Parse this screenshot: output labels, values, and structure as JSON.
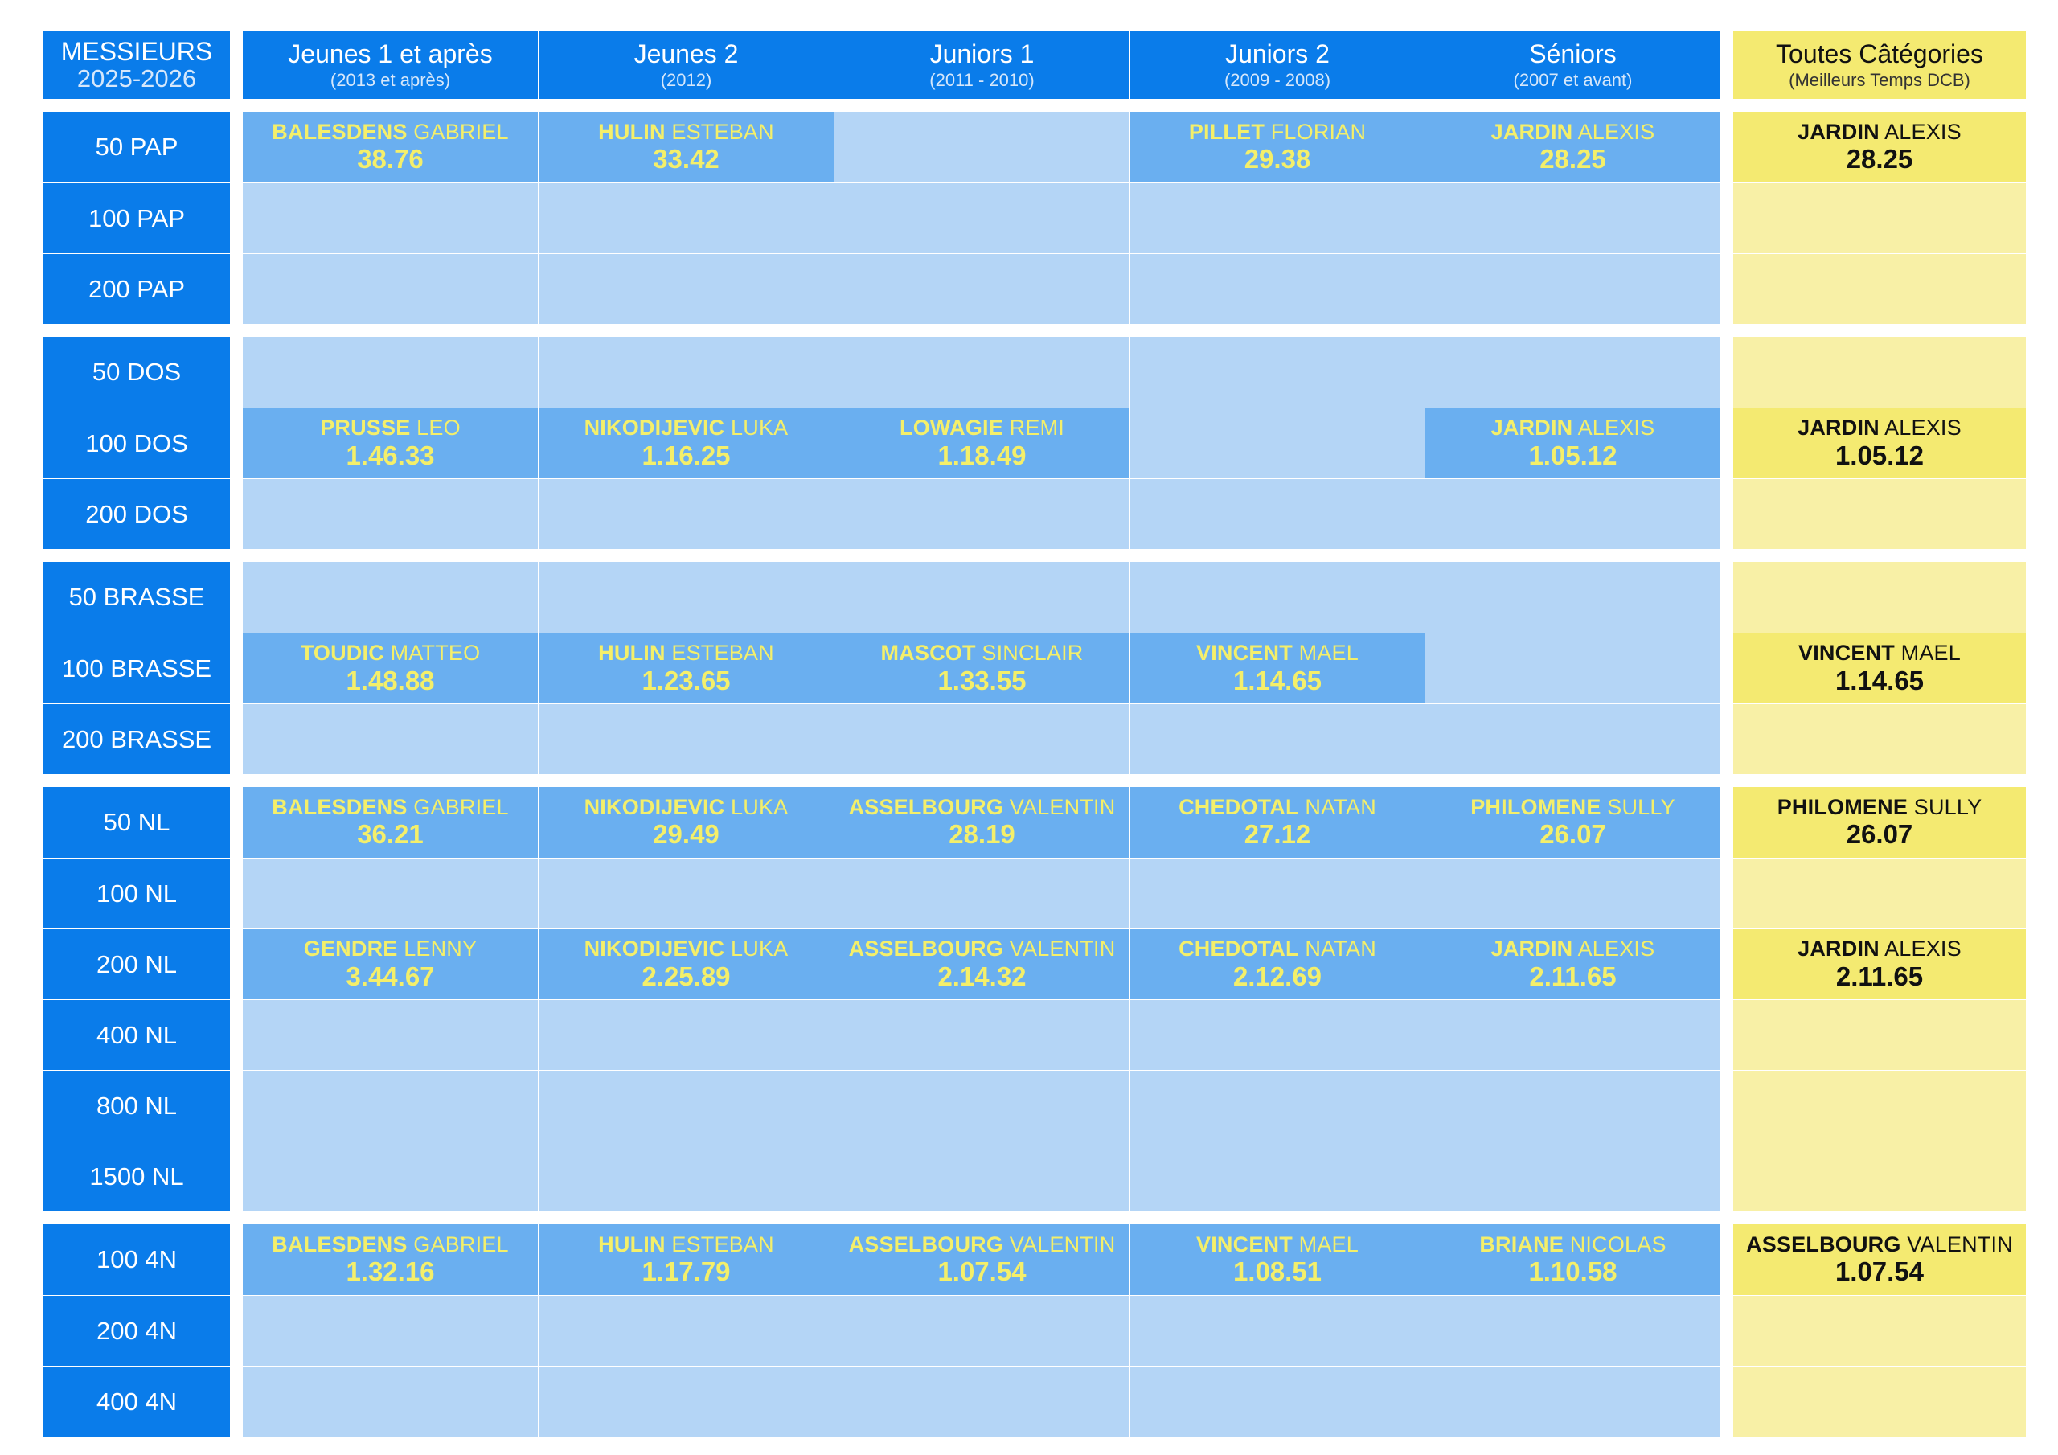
{
  "corner": {
    "title": "MESSIEURS",
    "season": "2025-2026"
  },
  "columns": [
    {
      "title": "Jeunes 1 et après",
      "subtitle": "(2013 et après)"
    },
    {
      "title": "Jeunes 2",
      "subtitle": "(2012)"
    },
    {
      "title": "Juniors 1",
      "subtitle": "(2011 - 2010)"
    },
    {
      "title": "Juniors 2",
      "subtitle": "(2009 - 2008)"
    },
    {
      "title": "Séniors",
      "subtitle": "(2007 et avant)"
    }
  ],
  "overall": {
    "title": "Toutes Câtégories",
    "subtitle": "(Meilleurs Temps DCB)"
  },
  "groups": [
    {
      "rows": [
        {
          "event": "50 PAP",
          "cells": [
            {
              "last": "BALESDENS",
              "first": "GABRIEL",
              "time": "38.76"
            },
            {
              "last": "HULIN",
              "first": "ESTEBAN",
              "time": "33.42"
            },
            null,
            {
              "last": "PILLET",
              "first": "FLORIAN",
              "time": "29.38"
            },
            {
              "last": "JARDIN",
              "first": "ALEXIS",
              "time": "28.25"
            }
          ],
          "best": {
            "last": "JARDIN",
            "first": "ALEXIS",
            "time": "28.25"
          }
        },
        {
          "event": "100 PAP",
          "cells": [
            null,
            null,
            null,
            null,
            null
          ],
          "best": null
        },
        {
          "event": "200 PAP",
          "cells": [
            null,
            null,
            null,
            null,
            null
          ],
          "best": null
        }
      ]
    },
    {
      "rows": [
        {
          "event": "50 DOS",
          "cells": [
            null,
            null,
            null,
            null,
            null
          ],
          "best": null
        },
        {
          "event": "100 DOS",
          "cells": [
            {
              "last": "PRUSSE",
              "first": "LEO",
              "time": "1.46.33"
            },
            {
              "last": "NIKODIJEVIC",
              "first": "LUKA",
              "time": "1.16.25"
            },
            {
              "last": "LOWAGIE",
              "first": "REMI",
              "time": "1.18.49"
            },
            null,
            {
              "last": "JARDIN",
              "first": "ALEXIS",
              "time": "1.05.12"
            }
          ],
          "best": {
            "last": "JARDIN",
            "first": "ALEXIS",
            "time": "1.05.12"
          }
        },
        {
          "event": "200 DOS",
          "cells": [
            null,
            null,
            null,
            null,
            null
          ],
          "best": null
        }
      ]
    },
    {
      "rows": [
        {
          "event": "50 BRASSE",
          "cells": [
            null,
            null,
            null,
            null,
            null
          ],
          "best": null
        },
        {
          "event": "100 BRASSE",
          "cells": [
            {
              "last": "TOUDIC",
              "first": "MATTEO",
              "time": "1.48.88"
            },
            {
              "last": "HULIN",
              "first": "ESTEBAN",
              "time": "1.23.65"
            },
            {
              "last": "MASCOT",
              "first": "SINCLAIR",
              "time": "1.33.55"
            },
            {
              "last": "VINCENT",
              "first": "MAEL",
              "time": "1.14.65"
            },
            null
          ],
          "best": {
            "last": "VINCENT",
            "first": "MAEL",
            "time": "1.14.65"
          }
        },
        {
          "event": "200 BRASSE",
          "cells": [
            null,
            null,
            null,
            null,
            null
          ],
          "best": null
        }
      ]
    },
    {
      "rows": [
        {
          "event": "50 NL",
          "cells": [
            {
              "last": "BALESDENS",
              "first": "GABRIEL",
              "time": "36.21"
            },
            {
              "last": "NIKODIJEVIC",
              "first": "LUKA",
              "time": "29.49"
            },
            {
              "last": "ASSELBOURG",
              "first": "VALENTIN",
              "time": "28.19"
            },
            {
              "last": "CHEDOTAL",
              "first": "NATAN",
              "time": "27.12"
            },
            {
              "last": "PHILOMENE",
              "first": "SULLY",
              "time": "26.07"
            }
          ],
          "best": {
            "last": "PHILOMENE",
            "first": "SULLY",
            "time": "26.07"
          }
        },
        {
          "event": "100 NL",
          "cells": [
            null,
            null,
            null,
            null,
            null
          ],
          "best": null
        },
        {
          "event": "200 NL",
          "cells": [
            {
              "last": "GENDRE",
              "first": "LENNY",
              "time": "3.44.67"
            },
            {
              "last": "NIKODIJEVIC",
              "first": "LUKA",
              "time": "2.25.89"
            },
            {
              "last": "ASSELBOURG",
              "first": "VALENTIN",
              "time": "2.14.32"
            },
            {
              "last": "CHEDOTAL",
              "first": "NATAN",
              "time": "2.12.69"
            },
            {
              "last": "JARDIN",
              "first": "ALEXIS",
              "time": "2.11.65"
            }
          ],
          "best": {
            "last": "JARDIN",
            "first": "ALEXIS",
            "time": "2.11.65"
          }
        },
        {
          "event": "400 NL",
          "cells": [
            null,
            null,
            null,
            null,
            null
          ],
          "best": null
        },
        {
          "event": "800 NL",
          "cells": [
            null,
            null,
            null,
            null,
            null
          ],
          "best": null
        },
        {
          "event": "1500 NL",
          "cells": [
            null,
            null,
            null,
            null,
            null
          ],
          "best": null
        }
      ]
    },
    {
      "rows": [
        {
          "event": "100 4N",
          "cells": [
            {
              "last": "BALESDENS",
              "first": "GABRIEL",
              "time": "1.32.16"
            },
            {
              "last": "HULIN",
              "first": "ESTEBAN",
              "time": "1.17.79"
            },
            {
              "last": "ASSELBOURG",
              "first": "VALENTIN",
              "time": "1.07.54"
            },
            {
              "last": "VINCENT",
              "first": "MAEL",
              "time": "1.08.51"
            },
            {
              "last": "BRIANE",
              "first": "NICOLAS",
              "time": "1.10.58"
            }
          ],
          "best": {
            "last": "ASSELBOURG",
            "first": "VALENTIN",
            "time": "1.07.54"
          }
        },
        {
          "event": "200 4N",
          "cells": [
            null,
            null,
            null,
            null,
            null
          ],
          "best": null
        },
        {
          "event": "400 4N",
          "cells": [
            null,
            null,
            null,
            null,
            null
          ],
          "best": null
        }
      ]
    }
  ]
}
